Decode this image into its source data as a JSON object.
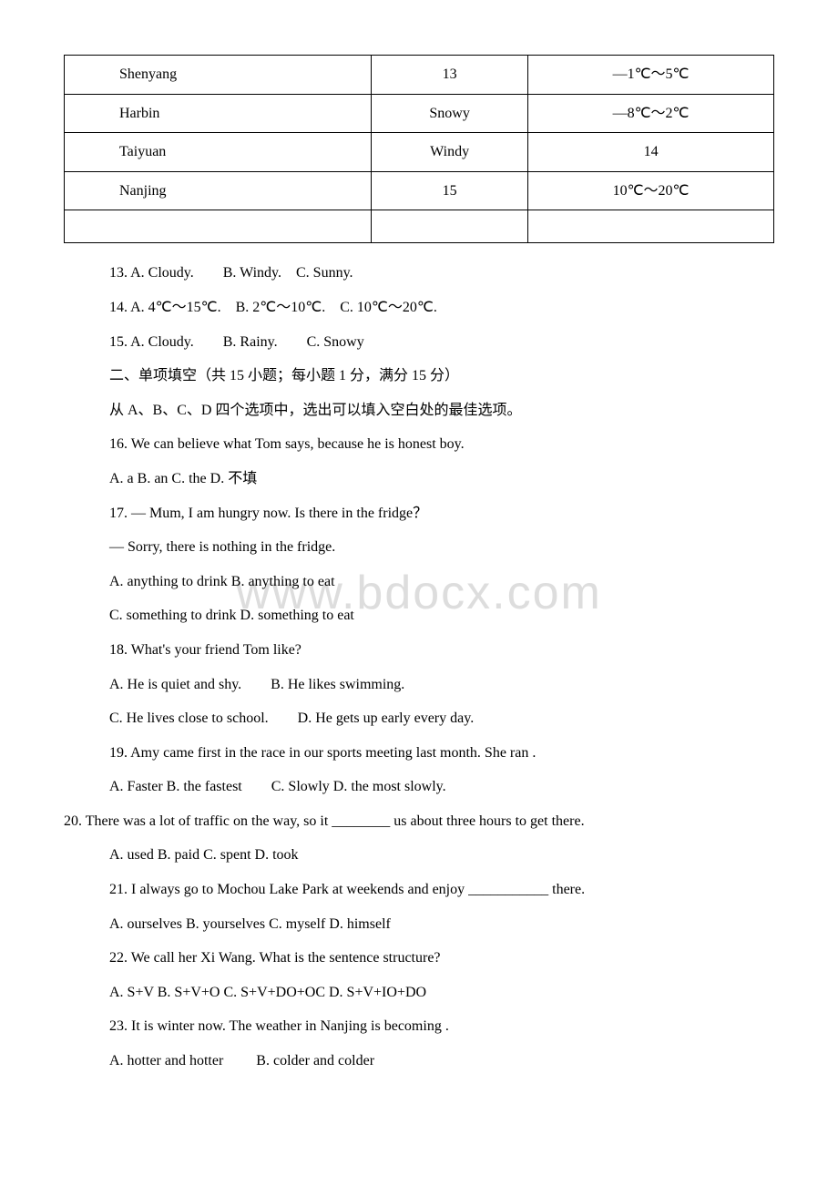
{
  "watermark": "www.bdocx.com",
  "table": {
    "rows": [
      [
        "Shenyang",
        "13",
        "—1℃～5℃"
      ],
      [
        "Harbin",
        "Snowy",
        "—8℃～2℃"
      ],
      [
        "Taiyuan",
        "Windy",
        "14"
      ],
      [
        "Nanjing",
        "15",
        "10℃～20℃"
      ],
      [
        "",
        "",
        ""
      ]
    ]
  },
  "questions": [
    "13. A. Cloudy.　　B. Windy.　C. Sunny.",
    "14. A. 4℃～15℃.　B. 2℃～10℃.　C. 10℃～20℃.",
    "15. A. Cloudy.　　B. Rainy.　　C. Snowy",
    "二、单项填空（共 15 小题；每小题 1 分，满分 15 分）",
    "从 A、B、C、D 四个选项中，选出可以填入空白处的最佳选项。",
    "16. We can believe what Tom says, because he is   honest boy.",
    "A. a   B. an   C. the   D. 不填",
    "17. — Mum, I am hungry now. Is there   in the fridge？",
    "— Sorry, there is nothing in the fridge.",
    "A. anything to drink B. anything to eat",
    "C. something to drink D. something to eat",
    "18. What's your friend Tom like?",
    "A. He is quiet and shy.　　B. He likes swimming.",
    "C. He lives close to school.　　D. He gets up early every day.",
    "19. Amy came first in the race in our sports meeting last month. She ran  .",
    "A. Faster   B. the fastest　　C. Slowly  D. the most slowly.",
    "20. There was a lot of traffic on the way, so it ________ us about three hours to get there.",
    "A. used   B. paid   C. spent   D. took",
    "21. I always go to Mochou Lake Park at weekends and enjoy ___________ there.",
    "A. ourselves  B. yourselves   C. myself   D. himself",
    "22. We call her Xi Wang. What is the sentence structure?",
    "A. S+V   B. S+V+O   C. S+V+DO+OC D. S+V+IO+DO",
    "23. It is winter now. The weather in Nanjing is becoming  .",
    "A. hotter and hotter　　 B. colder and colder"
  ],
  "noindent_indices": [
    16
  ]
}
